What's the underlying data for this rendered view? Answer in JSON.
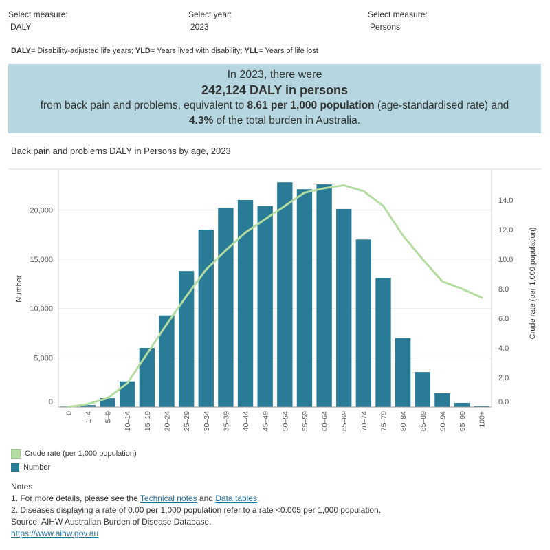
{
  "filters": [
    {
      "label": "Select measure:",
      "value": "DALY"
    },
    {
      "label": "Select year:",
      "value": "2023"
    },
    {
      "label": "Select measure:",
      "value": "Persons"
    }
  ],
  "definitions": {
    "daly_abbr": "DALY",
    "daly_text": "= Disability-adjusted life years; ",
    "yld_abbr": "YLD",
    "yld_text": "= Years lived with disability; ",
    "yll_abbr": "YLL",
    "yll_text": "= Years of life lost"
  },
  "banner": {
    "line1": "In 2023, there were",
    "line2": "242,124 DALY in persons",
    "line3_pre": "from back pain and problems, equivalent to ",
    "line3_bold": "8.61 per 1,000 population",
    "line3_post": " (age-standardised rate) and",
    "line4_bold": "4.3%",
    "line4_post": " of the total burden in Australia.",
    "background": "#b6d7df"
  },
  "chart_title": "Back pain and problems DALY in Persons by age, 2023",
  "chart_data": {
    "type": "bar",
    "title": "Back pain and problems DALY in Persons by age, 2023",
    "xlabel": "",
    "ylabel": "Number",
    "y2label": "Crude rate (per 1,000 population)",
    "categories": [
      "0",
      "1–4",
      "5–9",
      "10–14",
      "15–19",
      "20–24",
      "25–29",
      "30–34",
      "35–39",
      "40–44",
      "45–49",
      "50–54",
      "55–59",
      "60–64",
      "65–69",
      "70–74",
      "75–79",
      "80–84",
      "85–89",
      "90–94",
      "95–99",
      "100+"
    ],
    "ylim": [
      0,
      24000
    ],
    "y2lim": [
      0,
      16.0
    ],
    "yticks": [
      0,
      5000,
      10000,
      15000,
      20000
    ],
    "ytick_labels": [
      "0",
      "5,000",
      "10,000",
      "15,000",
      "20,000"
    ],
    "y2ticks": [
      0,
      2,
      4,
      6,
      8,
      10,
      12,
      14
    ],
    "y2tick_labels": [
      "0.0",
      "2.0",
      "4.0",
      "6.0",
      "8.0",
      "10.0",
      "12.0",
      "14.0"
    ],
    "series": [
      {
        "name": "Number",
        "type": "bar",
        "axis": "left",
        "color": "#2a7b96",
        "values": [
          50,
          200,
          900,
          2600,
          6000,
          9300,
          13800,
          18000,
          20200,
          21000,
          20400,
          22800,
          22100,
          22600,
          20100,
          17000,
          13100,
          7000,
          3550,
          1400,
          420,
          90
        ]
      },
      {
        "name": "Crude rate (per 1,000 population)",
        "type": "line",
        "axis": "right",
        "color": "#b4dba0",
        "values": [
          0.0,
          0.2,
          0.6,
          1.6,
          3.6,
          5.6,
          7.5,
          9.3,
          10.6,
          11.8,
          12.7,
          13.6,
          14.5,
          14.8,
          15.0,
          14.6,
          13.6,
          11.6,
          10.0,
          8.5,
          8.0,
          7.4
        ]
      }
    ],
    "grid": true,
    "legend": "bottom-left"
  },
  "legend": [
    {
      "label": "Crude rate (per 1,000 population)",
      "color": "#b4dba0"
    },
    {
      "label": "Number",
      "color": "#2a7b96"
    }
  ],
  "notes": {
    "heading": "Notes",
    "n1_pre": "1. For more details, please see the ",
    "n1_link1": "Technical notes",
    "n1_mid": " and ",
    "n1_link2": "Data tables",
    "n1_post": ".",
    "n2": "2. Diseases displaying a rate of 0.00 per 1,000 population refer to a rate <0.005 per 1,000 population.",
    "source": "Source: AIHW Australian Burden of Disease Database.",
    "url": "https://www.aihw.gov.au"
  }
}
